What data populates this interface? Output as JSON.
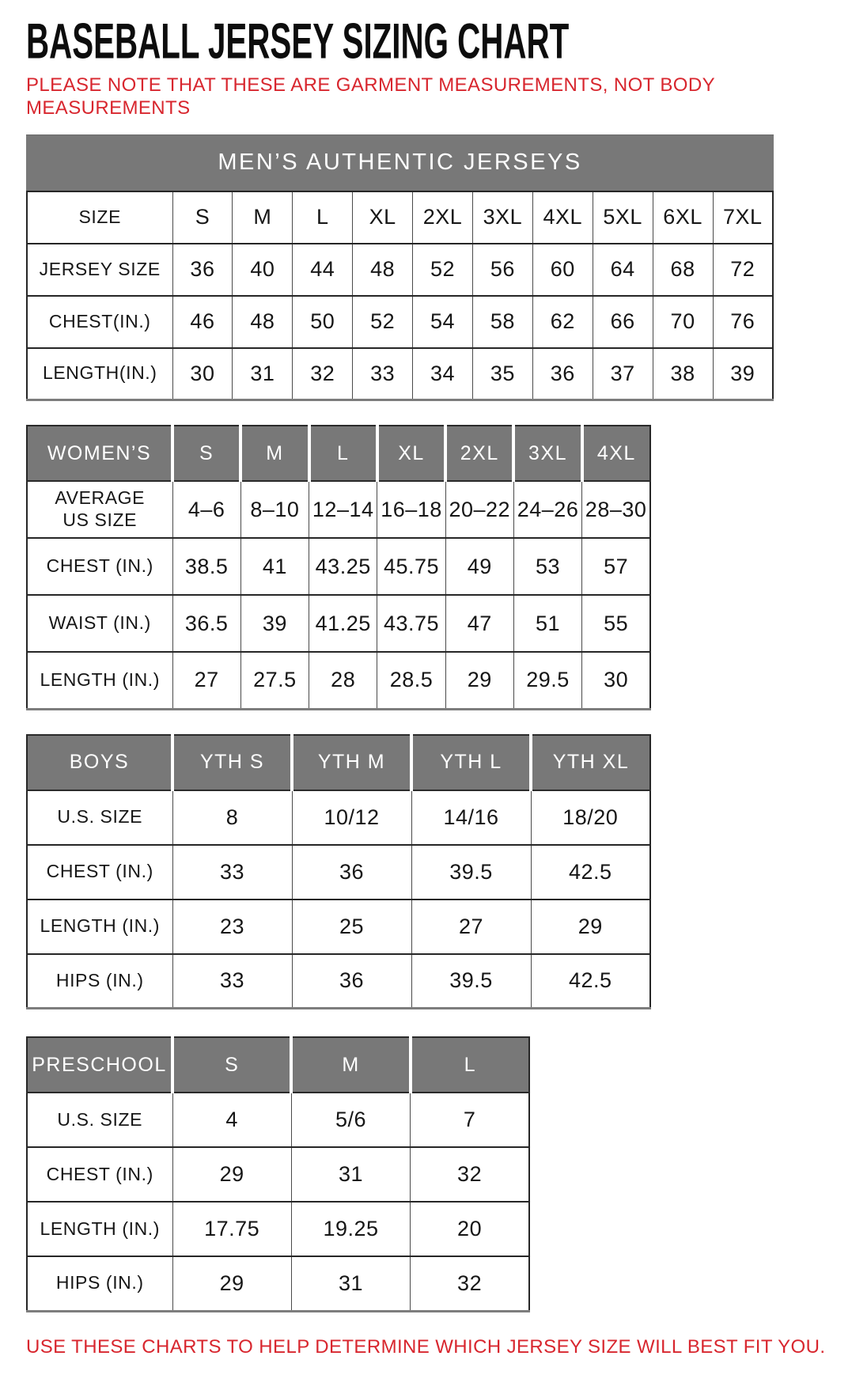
{
  "page": {
    "title": "BASEBALL JERSEY SIZING CHART",
    "note": "PLEASE NOTE THAT THESE ARE GARMENT MEASUREMENTS, NOT BODY MEASUREMENTS",
    "footer": "USE THESE CHARTS TO HELP DETERMINE WHICH JERSEY SIZE WILL BEST FIT YOU.",
    "colors": {
      "accent_red": "#d8262e",
      "header_gray": "#787878",
      "border_dark": "#262626"
    }
  },
  "tables": {
    "mens": {
      "banner": "MEN’S AUTHENTIC JERSEYS",
      "rows": [
        {
          "label": "SIZE",
          "values": [
            "S",
            "M",
            "L",
            "XL",
            "2XL",
            "3XL",
            "4XL",
            "5XL",
            "6XL",
            "7XL"
          ]
        },
        {
          "label": "JERSEY SIZE",
          "values": [
            "36",
            "40",
            "44",
            "48",
            "52",
            "56",
            "60",
            "64",
            "68",
            "72"
          ]
        },
        {
          "label": "CHEST(IN.)",
          "values": [
            "46",
            "48",
            "50",
            "52",
            "54",
            "58",
            "62",
            "66",
            "70",
            "76"
          ]
        },
        {
          "label": "LENGTH(IN.)",
          "values": [
            "30",
            "31",
            "32",
            "33",
            "34",
            "35",
            "36",
            "37",
            "38",
            "39"
          ]
        }
      ]
    },
    "womens": {
      "header": {
        "label": "WOMEN’S",
        "values": [
          "S",
          "M",
          "L",
          "XL",
          "2XL",
          "3XL",
          "4XL"
        ]
      },
      "rows": [
        {
          "label": "AVERAGE\nUS SIZE",
          "values": [
            "4–6",
            "8–10",
            "12–14",
            "16–18",
            "20–22",
            "24–26",
            "28–30"
          ]
        },
        {
          "label": "CHEST (IN.)",
          "values": [
            "38.5",
            "41",
            "43.25",
            "45.75",
            "49",
            "53",
            "57"
          ]
        },
        {
          "label": "WAIST (IN.)",
          "values": [
            "36.5",
            "39",
            "41.25",
            "43.75",
            "47",
            "51",
            "55"
          ]
        },
        {
          "label": "LENGTH (IN.)",
          "values": [
            "27",
            "27.5",
            "28",
            "28.5",
            "29",
            "29.5",
            "30"
          ]
        }
      ]
    },
    "boys": {
      "header": {
        "label": "BOYS",
        "values": [
          "YTH S",
          "YTH M",
          "YTH L",
          "YTH XL"
        ]
      },
      "rows": [
        {
          "label": "U.S. SIZE",
          "values": [
            "8",
            "10/12",
            "14/16",
            "18/20"
          ]
        },
        {
          "label": "CHEST (IN.)",
          "values": [
            "33",
            "36",
            "39.5",
            "42.5"
          ]
        },
        {
          "label": "LENGTH (IN.)",
          "values": [
            "23",
            "25",
            "27",
            "29"
          ]
        },
        {
          "label": "HIPS (IN.)",
          "values": [
            "33",
            "36",
            "39.5",
            "42.5"
          ]
        }
      ]
    },
    "preschool": {
      "header": {
        "label": "PRESCHOOL",
        "values": [
          "S",
          "M",
          "L"
        ]
      },
      "rows": [
        {
          "label": "U.S. SIZE",
          "values": [
            "4",
            "5/6",
            "7"
          ]
        },
        {
          "label": "CHEST (IN.)",
          "values": [
            "29",
            "31",
            "32"
          ]
        },
        {
          "label": "LENGTH (IN.)",
          "values": [
            "17.75",
            "19.25",
            "20"
          ]
        },
        {
          "label": "HIPS (IN.)",
          "values": [
            "29",
            "31",
            "32"
          ]
        }
      ]
    }
  }
}
